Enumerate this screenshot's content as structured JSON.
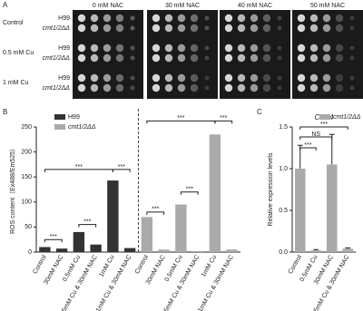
{
  "panel_a": {
    "label": "A",
    "columns": [
      "0 mM NAC",
      "30 mM NAC",
      "40 mM NAC",
      "50 mM NAC"
    ],
    "conditions": [
      "Control",
      "0.5 mM Cu",
      "1 mM Cu"
    ],
    "strains": [
      "H99",
      "cmt1/2ΔΔ"
    ]
  },
  "chart_data": [
    {
      "type": "bar",
      "panel_label": "B",
      "y_label": "ROS content（Ex488/Em525）",
      "categories": [
        "Control",
        "30mM NAC",
        "0.5mM Cu",
        "0.5mM Cu & 30mM NAC",
        "1mM Cu",
        "1mM Cu & 30mM NAC",
        "Control",
        "30mM NAC",
        "0.5mM Cu",
        "0.5mM Cu & 30mM NAC",
        "1mM Cu",
        "1mM Cu & 30mM NAC"
      ],
      "series": [
        {
          "name": "H99",
          "color": "#333333",
          "values": [
            10,
            7,
            40,
            15,
            143,
            8,
            null,
            null,
            null,
            null,
            null,
            null
          ]
        },
        {
          "name": "cmt1/2ΔΔ",
          "color": "#aaaaaa",
          "values": [
            null,
            null,
            null,
            null,
            null,
            null,
            70,
            5,
            95,
            2,
            235,
            5
          ]
        }
      ],
      "ylim": [
        0,
        250
      ],
      "yticks": [
        0,
        50,
        100,
        150,
        200,
        250
      ],
      "annotations": [
        "***",
        "***",
        "***",
        "***",
        "***",
        "***",
        "***",
        "***"
      ],
      "legend": "upper left"
    },
    {
      "type": "bar",
      "panel_label": "C",
      "title": "CTR4",
      "y_label": "Relative expression levels",
      "categories": [
        "Control",
        "0.5mM Cu",
        "30mM NAC",
        "0.5mM Cu & 30mM NAC"
      ],
      "series": [
        {
          "name": "cmt1/2ΔΔ",
          "color": "#aaaaaa",
          "values": [
            1.0,
            0.02,
            1.05,
            0.04
          ],
          "errors": [
            0.28,
            0.01,
            0.36,
            0.01
          ]
        }
      ],
      "ylim": [
        0,
        1.5
      ],
      "yticks": [
        {
          "value": 0,
          "label": "0.0"
        },
        0.5,
        {
          "value": 1,
          "label": "1.0"
        },
        1.5
      ],
      "annotations": [
        "***",
        "NS",
        "***"
      ],
      "legend": "upper right"
    }
  ]
}
